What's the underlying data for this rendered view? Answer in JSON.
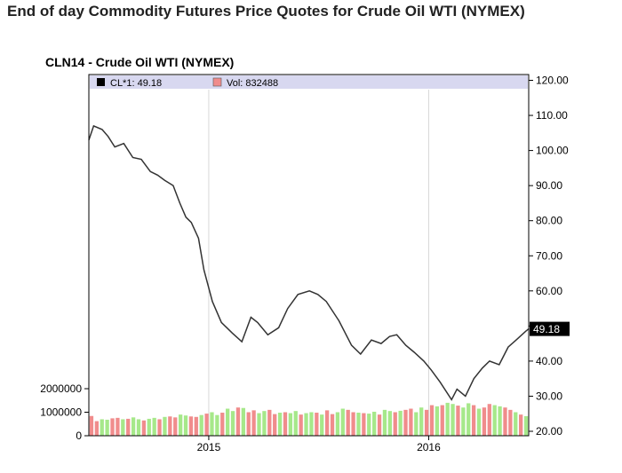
{
  "header": {
    "title": "End of day Commodity Futures Price Quotes for Crude Oil WTI (NYMEX)"
  },
  "chart_data": {
    "type": "line",
    "title": "CLN14 - Crude Oil WTI (NYMEX)",
    "legend": {
      "placement": "top",
      "background": "#d8d8f0",
      "items": [
        {
          "label": "CL*1: 49.18",
          "color": "#000000"
        },
        {
          "label": "Vol: 832488",
          "color": "#f08c8c"
        }
      ]
    },
    "price_axis": {
      "side": "right",
      "ylim": [
        20,
        120
      ],
      "ticks": [
        "20.00",
        "30.00",
        "40.00",
        "50.00",
        "60.00",
        "70.00",
        "80.00",
        "90.00",
        "100.00",
        "110.00",
        "120.00"
      ]
    },
    "volume_axis": {
      "side": "left",
      "ylim": [
        0,
        2600000
      ],
      "ticks": [
        "0",
        "1000000",
        "2000000"
      ]
    },
    "x_axis": {
      "xlim": [
        "2014-06-16",
        "2016-06-15"
      ],
      "ticks": [
        {
          "label": "2015",
          "date": "2015-01-01"
        },
        {
          "label": "2016",
          "date": "2016-01-01"
        }
      ]
    },
    "last_value": {
      "label": "49.18",
      "value": 49.18
    },
    "grid": false,
    "series": [
      {
        "name": "CL*1",
        "color": "#333333",
        "type": "line",
        "x": [
          "2014-06-16",
          "2014-06-24",
          "2014-07-08",
          "2014-07-18",
          "2014-07-29",
          "2014-08-13",
          "2014-08-28",
          "2014-09-11",
          "2014-09-26",
          "2014-10-08",
          "2014-10-20",
          "2014-11-03",
          "2014-11-14",
          "2014-11-24",
          "2014-12-03",
          "2014-12-15",
          "2014-12-24",
          "2015-01-07",
          "2015-01-22",
          "2015-02-09",
          "2015-02-25",
          "2015-03-12",
          "2015-03-23",
          "2015-04-09",
          "2015-04-27",
          "2015-05-12",
          "2015-05-29",
          "2015-06-17",
          "2015-07-01",
          "2015-07-15",
          "2015-08-05",
          "2015-08-26",
          "2015-09-10",
          "2015-09-28",
          "2015-10-14",
          "2015-10-28",
          "2015-11-09",
          "2015-11-24",
          "2015-12-08",
          "2015-12-24",
          "2016-01-05",
          "2016-01-20",
          "2016-02-08",
          "2016-02-17",
          "2016-03-02",
          "2016-03-16",
          "2016-03-30",
          "2016-04-11",
          "2016-04-27",
          "2016-05-12",
          "2016-05-25",
          "2016-06-10",
          "2016-06-15"
        ],
        "values": [
          103,
          107,
          106,
          104,
          101,
          102,
          98,
          97.5,
          94,
          93,
          91.5,
          90,
          85,
          81,
          79.5,
          75,
          66,
          57,
          51,
          48,
          45.5,
          52.5,
          51,
          47.5,
          49.5,
          55,
          59,
          60,
          59,
          57,
          51.5,
          44.5,
          42,
          46,
          45,
          47,
          47.5,
          44.5,
          42.5,
          40,
          37.5,
          34,
          29,
          32,
          30,
          35,
          38,
          40,
          39,
          44,
          46,
          48.5,
          49.18
        ]
      },
      {
        "name": "Vol",
        "type": "bar",
        "color_up": "#a6e88a",
        "color_down": "#f08c8c",
        "values": [
          840000,
          620000,
          700000,
          680000,
          740000,
          760000,
          700000,
          720000,
          780000,
          700000,
          650000,
          720000,
          760000,
          700000,
          800000,
          820000,
          780000,
          900000,
          860000,
          820000,
          800000,
          880000,
          940000,
          1000000,
          880000,
          980000,
          1150000,
          1050000,
          1200000,
          1180000,
          1000000,
          1080000,
          960000,
          1050000,
          1100000,
          920000,
          980000,
          1000000,
          960000,
          1050000,
          900000,
          960000,
          1000000,
          980000,
          900000,
          1080000,
          920000,
          1000000,
          1150000,
          1100000,
          1000000,
          980000,
          960000,
          940000,
          1020000,
          900000,
          1100000,
          1050000,
          1000000,
          1060000,
          1100000,
          1150000,
          1000000,
          1200000,
          1100000,
          1300000,
          1250000,
          1300000,
          1400000,
          1350000,
          1280000,
          1200000,
          1380000,
          1300000,
          1150000,
          1200000,
          1350000,
          1300000,
          1250000,
          1200000,
          1100000,
          1000000,
          900000,
          832488
        ]
      }
    ]
  }
}
